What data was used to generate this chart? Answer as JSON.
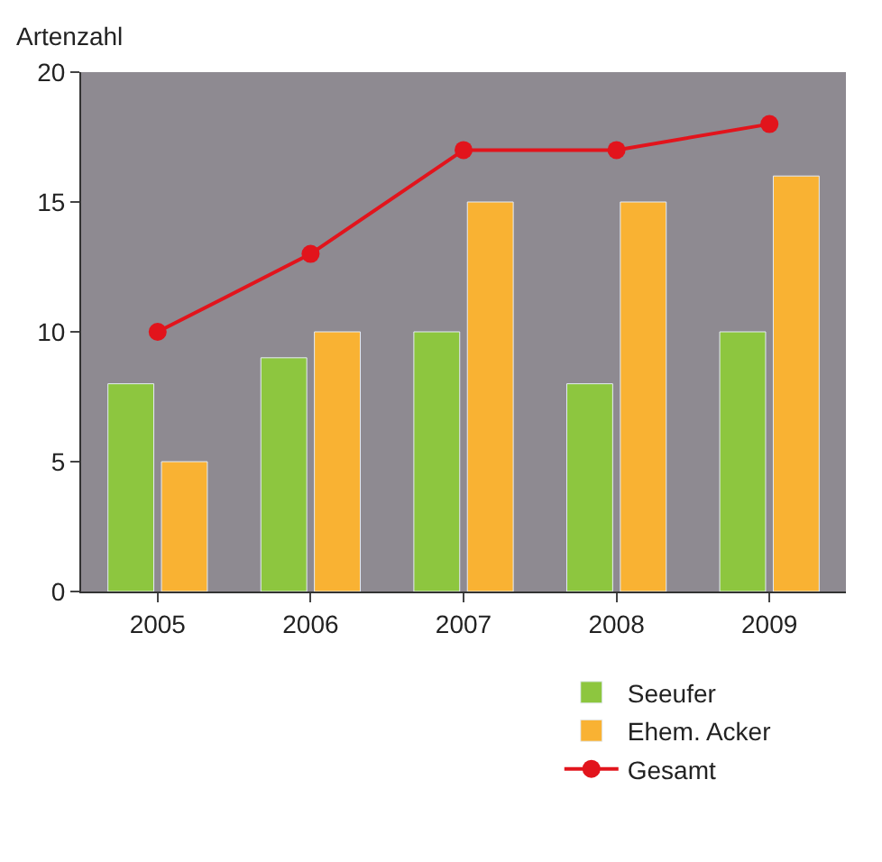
{
  "chart_data": {
    "type": "bar",
    "ylabel": "Artenzahl",
    "categories": [
      "2005",
      "2006",
      "2007",
      "2008",
      "2009"
    ],
    "series": [
      {
        "name": "Seeufer",
        "color": "#8dc63f",
        "values": [
          8,
          9,
          10,
          8,
          10
        ]
      },
      {
        "name": "Ehem. Acker",
        "color": "#f9b233",
        "values": [
          5,
          10,
          15,
          15,
          16
        ]
      },
      {
        "name": "Gesamt",
        "type": "line",
        "color": "#e2141c",
        "marker": "circle",
        "values": [
          10,
          13,
          17,
          17,
          18
        ]
      }
    ],
    "ylim": [
      0,
      20
    ],
    "yticks": [
      0,
      5,
      10,
      15,
      20
    ],
    "grid": false,
    "legend": "bottom right"
  }
}
